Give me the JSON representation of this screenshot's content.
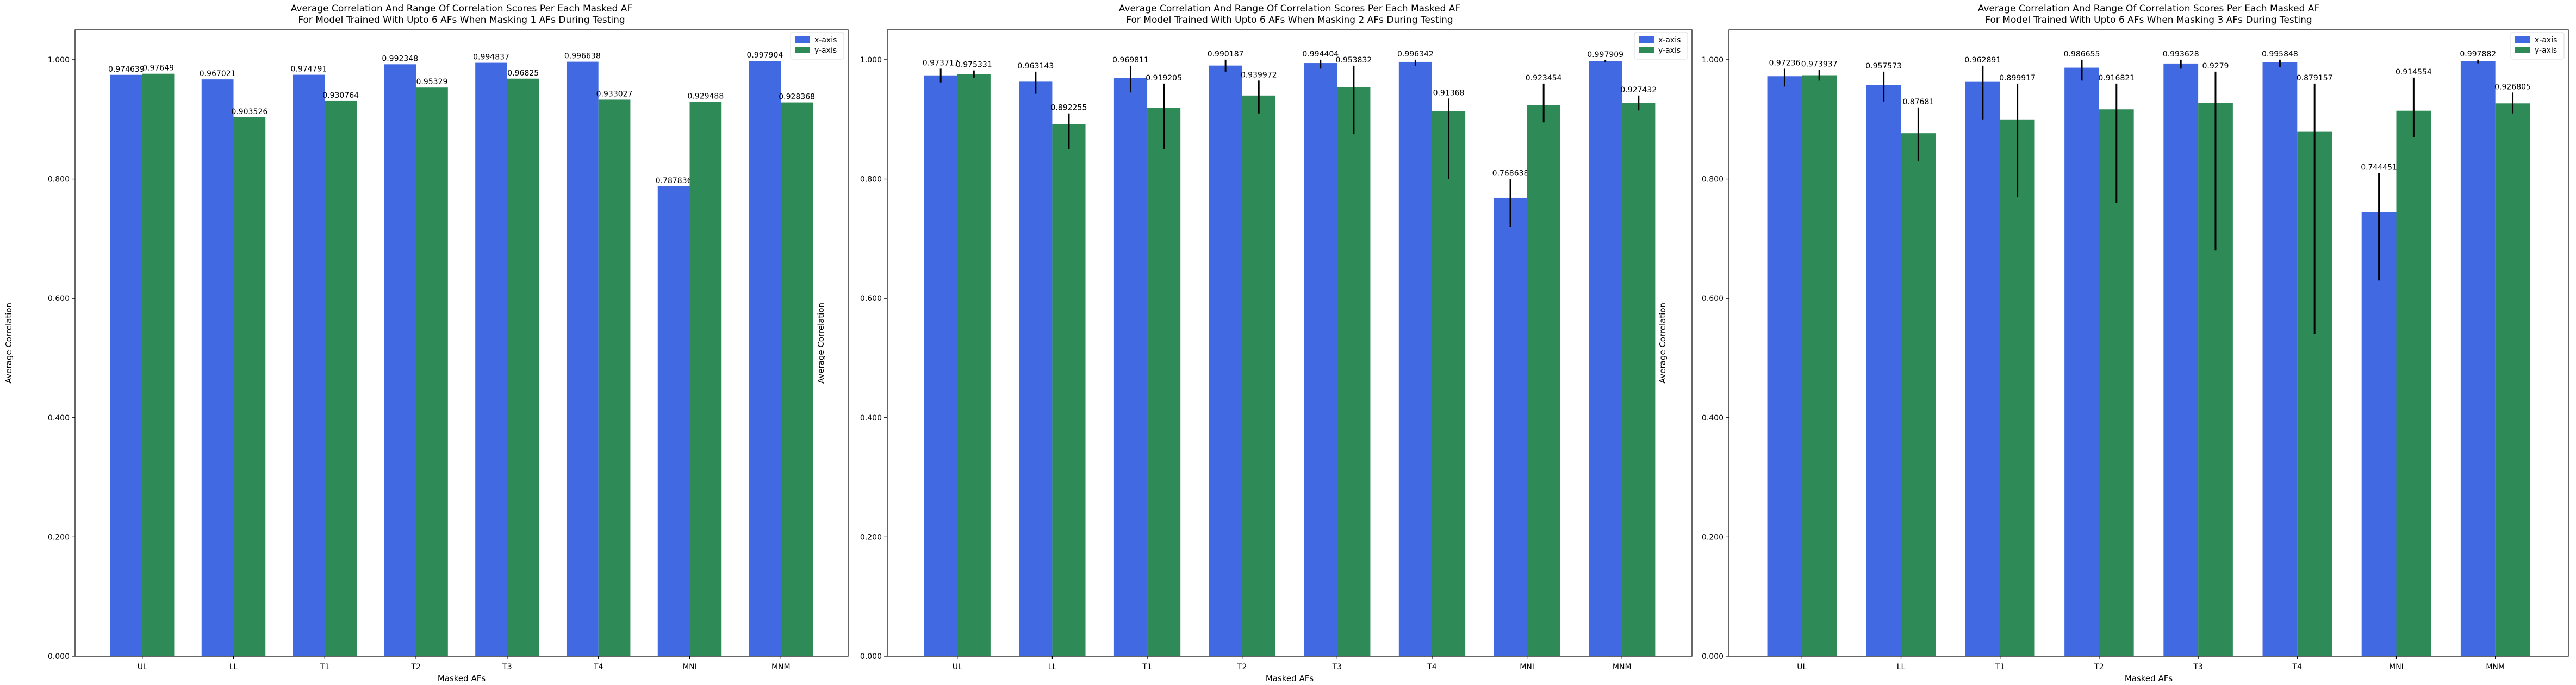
{
  "chart_data": [
    {
      "type": "bar",
      "title": "Average Correlation And Range Of Correlation Scores Per Each Masked AF",
      "subtitle": "For Model Trained With Upto 6 AFs When Masking 1 AFs During Testing",
      "xlabel": "Masked AFs",
      "ylabel": "Average Correlation",
      "ylim": [
        0,
        1.05
      ],
      "yticks": [
        "0.000",
        "0.200",
        "0.400",
        "0.600",
        "0.800",
        "1.000"
      ],
      "categories": [
        "UL",
        "LL",
        "T1",
        "T2",
        "T3",
        "T4",
        "MNI",
        "MNM"
      ],
      "series": [
        {
          "name": "x-axis",
          "color": "#4169e1",
          "values": [
            0.974639,
            0.967021,
            0.974791,
            0.992348,
            0.994837,
            0.996638,
            0.787836,
            0.997904
          ],
          "labels": [
            "0.974639",
            "0.967021",
            "0.974791",
            "0.992348",
            "0.994837",
            "0.996638",
            "0.787836",
            "0.997904"
          ],
          "range": [
            null,
            null,
            null,
            null,
            null,
            null,
            null,
            null
          ]
        },
        {
          "name": "y-axis",
          "color": "#2e8b57",
          "values": [
            0.97649,
            0.903526,
            0.930764,
            0.95329,
            0.96825,
            0.933027,
            0.929488,
            0.928368
          ],
          "labels": [
            "0.97649",
            "0.903526",
            "0.930764",
            "0.95329",
            "0.96825",
            "0.933027",
            "0.929488",
            "0.928368"
          ],
          "range": [
            null,
            null,
            null,
            null,
            null,
            null,
            null,
            null
          ]
        }
      ],
      "legend": "top-right",
      "grid": false
    },
    {
      "type": "bar",
      "title": "Average Correlation And Range Of Correlation Scores Per Each Masked AF",
      "subtitle": "For Model Trained With Upto 6 AFs When Masking 2 AFs During Testing",
      "xlabel": "Masked AFs",
      "ylabel": "Average Correlation",
      "ylim": [
        0,
        1.05
      ],
      "yticks": [
        "0.000",
        "0.200",
        "0.400",
        "0.600",
        "0.800",
        "1.000"
      ],
      "categories": [
        "UL",
        "LL",
        "T1",
        "T2",
        "T3",
        "T4",
        "MNI",
        "MNM"
      ],
      "series": [
        {
          "name": "x-axis",
          "color": "#4169e1",
          "values": [
            0.973717,
            0.963143,
            0.969811,
            0.990187,
            0.994404,
            0.996342,
            0.768638,
            0.997909
          ],
          "labels": [
            "0.973717",
            "0.963143",
            "0.969811",
            "0.990187",
            "0.994404",
            "0.996342",
            "0.768638",
            "0.997909"
          ],
          "range": [
            [
              0.962,
              0.985
            ],
            [
              0.943,
              0.98
            ],
            [
              0.945,
              0.99
            ],
            [
              0.98,
              1.0
            ],
            [
              0.985,
              1.0
            ],
            [
              0.99,
              1.0
            ],
            [
              0.72,
              0.8
            ],
            [
              0.996,
              0.999
            ]
          ]
        },
        {
          "name": "y-axis",
          "color": "#2e8b57",
          "values": [
            0.975331,
            0.892255,
            0.919205,
            0.939972,
            0.953832,
            0.91368,
            0.923454,
            0.927432
          ],
          "labels": [
            "0.975331",
            "0.892255",
            "0.919205",
            "0.939972",
            "0.953832",
            "0.91368",
            "0.923454",
            "0.927432"
          ],
          "range": [
            [
              0.97,
              0.982
            ],
            [
              0.85,
              0.91
            ],
            [
              0.85,
              0.96
            ],
            [
              0.91,
              0.965
            ],
            [
              0.875,
              0.99
            ],
            [
              0.8,
              0.935
            ],
            [
              0.895,
              0.96
            ],
            [
              0.915,
              0.94
            ]
          ]
        }
      ],
      "legend": "top-right",
      "grid": false
    },
    {
      "type": "bar",
      "title": "Average Correlation And Range Of Correlation Scores Per Each Masked AF",
      "subtitle": "For Model Trained With Upto 6 AFs When Masking 3 AFs During Testing",
      "xlabel": "Masked AFs",
      "ylabel": "Average Correlation",
      "ylim": [
        0,
        1.05
      ],
      "yticks": [
        "0.000",
        "0.200",
        "0.400",
        "0.600",
        "0.800",
        "1.000"
      ],
      "categories": [
        "UL",
        "LL",
        "T1",
        "T2",
        "T3",
        "T4",
        "MNI",
        "MNM"
      ],
      "series": [
        {
          "name": "x-axis",
          "color": "#4169e1",
          "values": [
            0.97236,
            0.957573,
            0.962891,
            0.986655,
            0.993628,
            0.995848,
            0.744451,
            0.997882
          ],
          "labels": [
            "0.97236",
            "0.957573",
            "0.962891",
            "0.986655",
            "0.993628",
            "0.995848",
            "0.744451",
            "0.997882"
          ],
          "range": [
            [
              0.955,
              0.985
            ],
            [
              0.93,
              0.98
            ],
            [
              0.9,
              0.99
            ],
            [
              0.965,
              1.0
            ],
            [
              0.985,
              1.0
            ],
            [
              0.988,
              1.0
            ],
            [
              0.63,
              0.81
            ],
            [
              0.994,
              1.0
            ]
          ]
        },
        {
          "name": "y-axis",
          "color": "#2e8b57",
          "values": [
            0.973937,
            0.87681,
            0.899917,
            0.916821,
            0.9279,
            0.879157,
            0.914554,
            0.926805
          ],
          "labels": [
            "0.973937",
            "0.87681",
            "0.899917",
            "0.916821",
            "0.9279",
            "0.879157",
            "0.914554",
            "0.926805"
          ],
          "range": [
            [
              0.965,
              0.983
            ],
            [
              0.83,
              0.92
            ],
            [
              0.77,
              0.96
            ],
            [
              0.76,
              0.96
            ],
            [
              0.68,
              0.98
            ],
            [
              0.54,
              0.96
            ],
            [
              0.87,
              0.97
            ],
            [
              0.91,
              0.945
            ]
          ]
        }
      ],
      "legend": "top-right",
      "grid": false
    }
  ]
}
